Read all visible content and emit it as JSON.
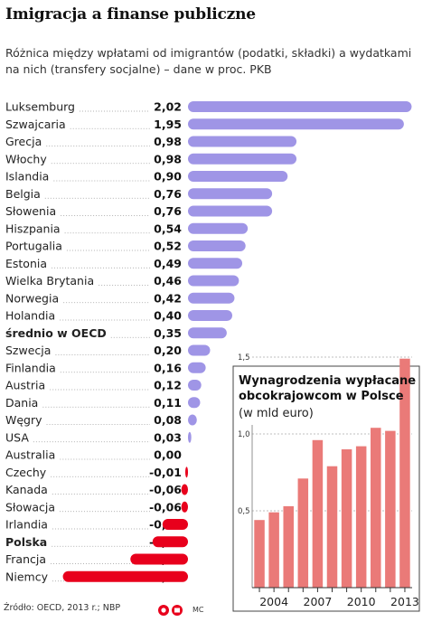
{
  "header": {
    "title": "Imigracja a finanse publiczne",
    "subtitle": "Różnica między wpłatami od imigrantów (podatki, składki) a wydatkami na nich (transfery socjalne) – dane w proc. PKB"
  },
  "footer": {
    "source": "Źródło: OECD, 2013 r.; NBP",
    "credit": "MC"
  },
  "colors": {
    "positive": "#9f95e6",
    "negative": "#e8001c",
    "inset_bar": "#ea7a78",
    "leader": "#999999"
  },
  "chart_data": [
    {
      "type": "bar",
      "orientation": "horizontal",
      "title": "",
      "categories": [
        "Luksemburg",
        "Szwajcaria",
        "Grecja",
        "Włochy",
        "Islandia",
        "Belgia",
        "Słowenia",
        "Hiszpania",
        "Portugalia",
        "Estonia",
        "Wielka Brytania",
        "Norwegia",
        "Holandia",
        "średnio w OECD",
        "Szwecja",
        "Finlandia",
        "Austria",
        "Dania",
        "Węgry",
        "USA",
        "Australia",
        "Czechy",
        "Kanada",
        "Słowacja",
        "Irlandia",
        "Polska",
        "Francja",
        "Niemcy"
      ],
      "value_labels": [
        "2,02",
        "1,95",
        "0,98",
        "0,98",
        "0,90",
        "0,76",
        "0,76",
        "0,54",
        "0,52",
        "0,49",
        "0,46",
        "0,42",
        "0,40",
        "0,35",
        "0,20",
        "0,16",
        "0,12",
        "0,11",
        "0,08",
        "0,03",
        "0,00",
        "-0,01",
        "-0,06",
        "-0,06",
        "-0,23",
        "-0,32",
        "-0,52",
        "-1,13"
      ],
      "values": [
        2.02,
        1.95,
        0.98,
        0.98,
        0.9,
        0.76,
        0.76,
        0.54,
        0.52,
        0.49,
        0.46,
        0.42,
        0.4,
        0.35,
        0.2,
        0.16,
        0.12,
        0.11,
        0.08,
        0.03,
        0.0,
        -0.01,
        -0.06,
        -0.06,
        -0.23,
        -0.32,
        -0.52,
        -1.13
      ],
      "bold": [
        "średnio w OECD",
        "Polska"
      ]
    },
    {
      "type": "bar",
      "title": "Wynagrodzenia wypłacane obcokrajowcom w Polsce",
      "subtitle": "(w mld euro)",
      "x": [
        2003,
        2004,
        2005,
        2006,
        2007,
        2008,
        2009,
        2010,
        2011,
        2012,
        2013
      ],
      "values": [
        0.44,
        0.49,
        0.53,
        0.71,
        0.96,
        0.79,
        0.9,
        0.92,
        1.04,
        1.02,
        1.49
      ],
      "xticks": [
        "2004",
        "2007",
        "2010",
        "2013"
      ],
      "yticks": [
        "0,5",
        "1,0",
        "1,5"
      ],
      "ylim": [
        0,
        1.5
      ]
    }
  ]
}
